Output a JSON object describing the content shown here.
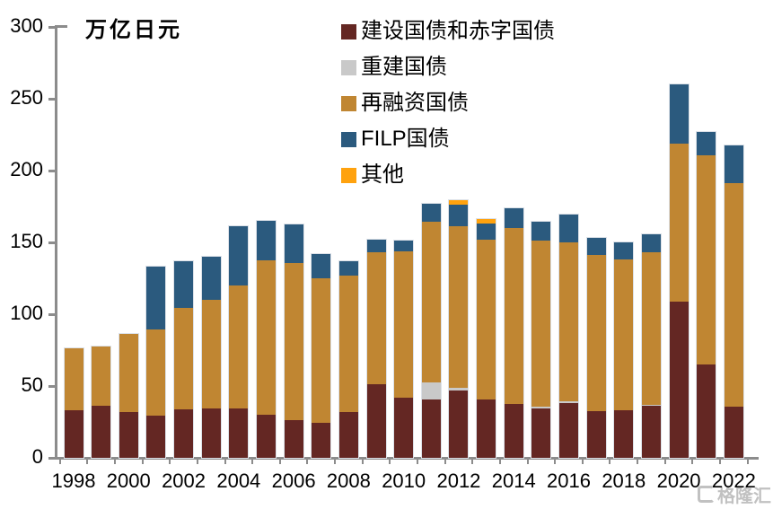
{
  "title": {
    "unit_label": "万亿日元"
  },
  "colors": {
    "axis": "#8C8C8C",
    "text": "#000000",
    "bar_outline": "#DCE1E8",
    "construction_deficit": "#642723",
    "reconstruction": "#C9C9C9",
    "refinancing": "#C08632",
    "filp": "#2B5A7E",
    "other": "#FFA20E"
  },
  "axis": {
    "y_ticks": [
      300,
      250,
      200,
      150,
      100,
      50,
      0
    ]
  },
  "legend": {
    "labels": [
      "建设国债和赤字国债",
      "重建国债",
      "再融资国债",
      "FILP国债",
      "其他"
    ]
  },
  "watermark": {
    "text": "格隆汇"
  },
  "chart_data": {
    "type": "bar",
    "stacked": true,
    "title": "万亿日元",
    "xlabel": "",
    "ylabel": "万亿日元",
    "ylim": [
      0,
      300
    ],
    "yticks": [
      0,
      50,
      100,
      150,
      200,
      250,
      300
    ],
    "grid": false,
    "legend_position": "top-center",
    "x_tick_step": 2,
    "categories": [
      1998,
      1999,
      2000,
      2001,
      2002,
      2003,
      2004,
      2005,
      2006,
      2007,
      2008,
      2009,
      2010,
      2011,
      2012,
      2013,
      2014,
      2015,
      2016,
      2017,
      2018,
      2019,
      2020,
      2021,
      2022
    ],
    "series": [
      {
        "name": "建设国债和赤字国债",
        "color": "#642723",
        "values": [
          33,
          36.5,
          32,
          29.5,
          34,
          34.5,
          34.5,
          30,
          26.5,
          24.5,
          32,
          51.5,
          42,
          40.5,
          47,
          40.5,
          37.5,
          34.5,
          38,
          32.5,
          33,
          36,
          109,
          65,
          35.5
        ]
      },
      {
        "name": "重建国债",
        "color": "#C9C9C9",
        "values": [
          0,
          0,
          0,
          0,
          0,
          0,
          0,
          0,
          0,
          0,
          0,
          0,
          0,
          12,
          2,
          0,
          0,
          1,
          1.5,
          0,
          0,
          1,
          0,
          0,
          0
        ]
      },
      {
        "name": "再融资国债",
        "color": "#C08632",
        "values": [
          43,
          41,
          54.5,
          60,
          70.5,
          75.5,
          85.5,
          107.5,
          109,
          100.5,
          95,
          91.5,
          102,
          112,
          112.5,
          111.5,
          122.5,
          116,
          110.5,
          109,
          105,
          106,
          110,
          145.5,
          156
        ]
      },
      {
        "name": "FILP国债",
        "color": "#2B5A7E",
        "values": [
          0,
          0,
          0,
          43.5,
          32.5,
          30,
          41.5,
          27.5,
          27,
          17,
          10,
          9,
          7.5,
          12.5,
          15,
          11,
          13.5,
          13,
          19.5,
          11.5,
          12,
          12.5,
          41,
          16.5,
          26
        ]
      },
      {
        "name": "其他",
        "color": "#FFA20E",
        "values": [
          0,
          0,
          0,
          0,
          0,
          0,
          0,
          0,
          0,
          0,
          0,
          0,
          0,
          0,
          3,
          3,
          0,
          0,
          0,
          0,
          0,
          0,
          0,
          0,
          0
        ]
      }
    ]
  }
}
